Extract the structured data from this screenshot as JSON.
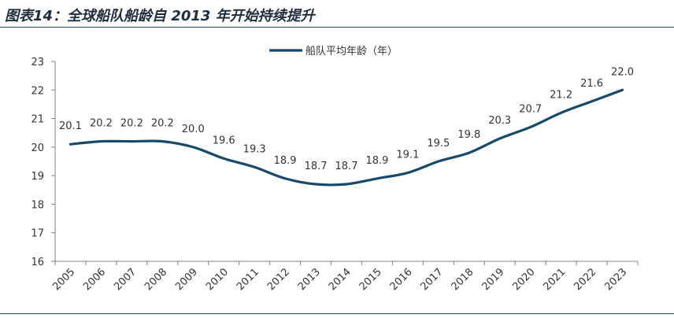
{
  "title": "图表14：全球船队船龄自 2013 年开始持续提升",
  "colors": {
    "line": "#17496b",
    "axis": "#808080",
    "rule": "#1f4e79"
  },
  "chart_data": {
    "type": "line",
    "title": "",
    "xlabel": "",
    "ylabel": "",
    "categories": [
      "2005",
      "2006",
      "2007",
      "2008",
      "2009",
      "2010",
      "2011",
      "2012",
      "2013",
      "2014",
      "2015",
      "2016",
      "2017",
      "2018",
      "2019",
      "2020",
      "2021",
      "2022",
      "2023"
    ],
    "series": [
      {
        "name": "船队平均年龄（年）",
        "values": [
          20.1,
          20.2,
          20.2,
          20.2,
          20.0,
          19.6,
          19.3,
          18.9,
          18.7,
          18.7,
          18.9,
          19.1,
          19.5,
          19.8,
          20.3,
          20.7,
          21.2,
          21.6,
          22.0
        ]
      }
    ],
    "data_labels": [
      "20.1",
      "20.2",
      "20.2",
      "20.2",
      "20.0",
      "19.6",
      "19.3",
      "18.9",
      "18.7",
      "18.7",
      "18.9",
      "19.1",
      "19.5",
      "19.8",
      "20.3",
      "20.7",
      "21.2",
      "21.6",
      "22.0"
    ],
    "ylim": [
      16,
      23
    ],
    "yticks": [
      "16",
      "17",
      "18",
      "19",
      "20",
      "21",
      "22",
      "23"
    ],
    "grid": false,
    "legend": "top-center"
  }
}
